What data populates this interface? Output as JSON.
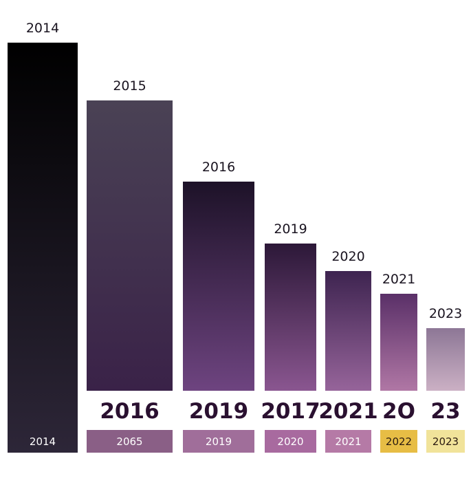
{
  "chart_data": {
    "type": "bar",
    "bars": [
      {
        "top_label": "2014",
        "value": 596,
        "big_label": "",
        "strip_label": "2014",
        "strip_color": "",
        "top_color": "#000000",
        "bottom_color": "#2d2638"
      },
      {
        "top_label": "2015",
        "value": 422,
        "big_label": "2016",
        "strip_label": "2065",
        "strip_color": "#8a5f86",
        "top_color": "#4a4255",
        "bottom_color": "#3a2248"
      },
      {
        "top_label": "2016",
        "value": 304,
        "big_label": "2019",
        "strip_label": "2019",
        "strip_color": "#a06e9a",
        "top_color": "#1d1228",
        "bottom_color": "#6e4480"
      },
      {
        "top_label": "2019",
        "value": 214,
        "big_label": "2017",
        "strip_label": "2020",
        "strip_color": "#a86a9f",
        "top_color": "#2c1838",
        "bottom_color": "#8a5690"
      },
      {
        "top_label": "2020",
        "value": 174,
        "big_label": "2021",
        "strip_label": "2021",
        "strip_color": "#b57aa6",
        "top_color": "#3e2450",
        "bottom_color": "#96649a"
      },
      {
        "top_label": "2021",
        "value": 141,
        "big_label": "2O",
        "strip_label": "2022",
        "strip_color": "#e7bd45",
        "top_color": "#5a3068",
        "bottom_color": "#b077a5"
      },
      {
        "top_label": "2023",
        "value": 91,
        "big_label": "23",
        "strip_label": "2023",
        "strip_color": "#f1e39a",
        "top_color": "#8d7796",
        "bottom_color": "#cbb0c4"
      }
    ],
    "ylim": [
      0,
      600
    ],
    "grid": false,
    "legend": "none"
  }
}
